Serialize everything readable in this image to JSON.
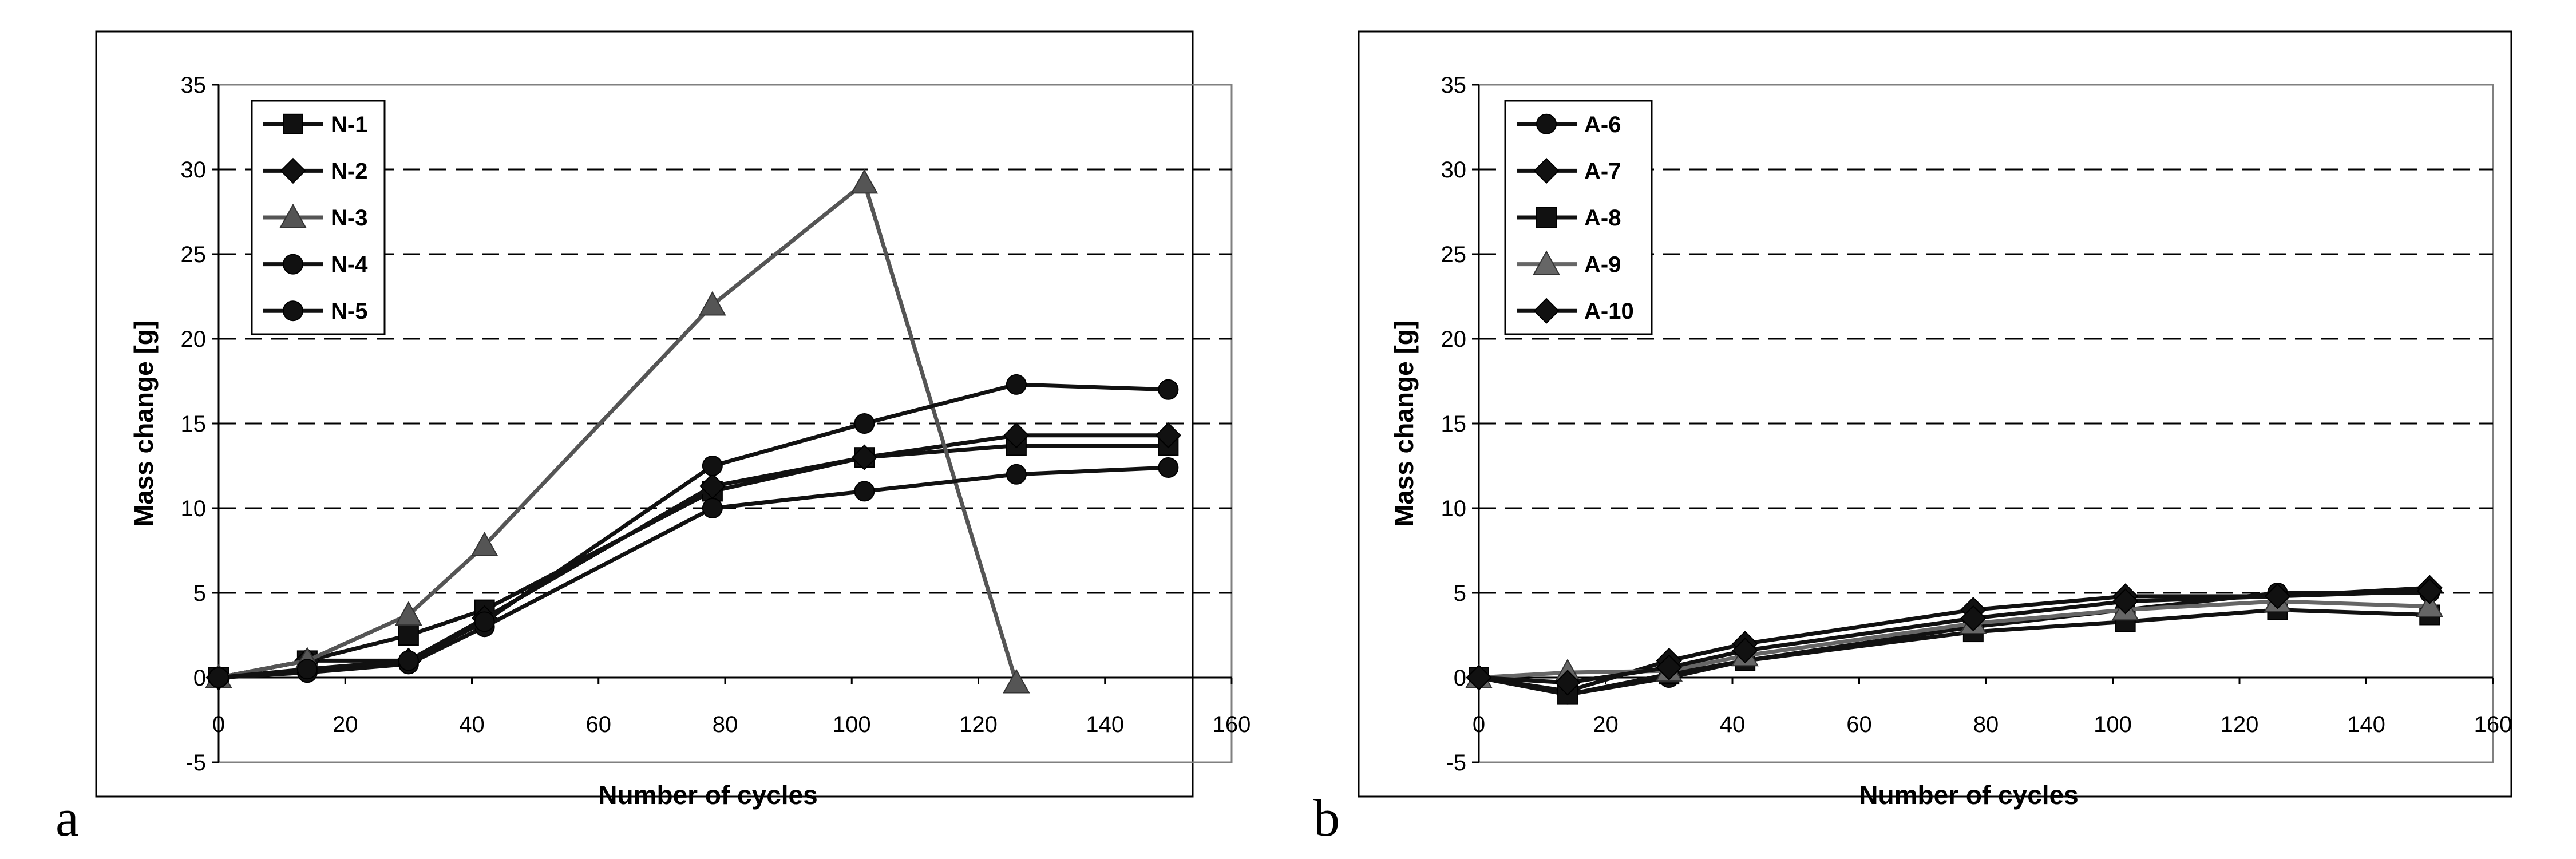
{
  "chart_data": [
    {
      "type": "line",
      "panel_label": "a",
      "title": "",
      "xlabel": "Number of cycles",
      "ylabel": "Mass change [g]",
      "xlim": [
        0,
        160
      ],
      "ylim": [
        -5,
        35
      ],
      "x_ticks": [
        "0",
        "20",
        "40",
        "60",
        "80",
        "100",
        "120",
        "140",
        "160"
      ],
      "y_ticks": [
        "-5",
        "0",
        "5",
        "10",
        "15",
        "20",
        "25",
        "30",
        "35"
      ],
      "grid": "horizontal dashed",
      "legend_position": "top-left",
      "x": [
        0,
        14,
        30,
        42,
        78,
        102,
        126,
        150
      ],
      "series": [
        {
          "name": "N-1",
          "marker": "square",
          "color": "#111111",
          "values": [
            0,
            1.0,
            2.5,
            4.0,
            11.0,
            13.0,
            13.7,
            13.7
          ]
        },
        {
          "name": "N-2",
          "marker": "diamond",
          "color": "#111111",
          "values": [
            0,
            1.0,
            1.0,
            3.5,
            11.3,
            13.0,
            14.3,
            14.3
          ]
        },
        {
          "name": "N-3",
          "marker": "triangle",
          "color": "#555555",
          "values": [
            0,
            1.0,
            3.7,
            7.8,
            22.0,
            29.2,
            -0.3,
            null
          ]
        },
        {
          "name": "N-4",
          "marker": "circle",
          "color": "#111111",
          "values": [
            0,
            0.3,
            0.8,
            3.0,
            10.0,
            11.0,
            12.0,
            12.4
          ]
        },
        {
          "name": "N-5",
          "marker": "circle",
          "color": "#111111",
          "values": [
            0,
            0.5,
            1.0,
            3.3,
            12.5,
            15.0,
            17.3,
            17.0
          ]
        }
      ]
    },
    {
      "type": "line",
      "panel_label": "b",
      "title": "",
      "xlabel": "Number of cycles",
      "ylabel": "Mass change [g]",
      "xlim": [
        0,
        160
      ],
      "ylim": [
        -5,
        35
      ],
      "x_ticks": [
        "0",
        "20",
        "40",
        "60",
        "80",
        "100",
        "120",
        "140",
        "160"
      ],
      "y_ticks": [
        "-5",
        "0",
        "5",
        "10",
        "15",
        "20",
        "25",
        "30",
        "35"
      ],
      "grid": "horizontal dashed",
      "legend_position": "top-left",
      "x": [
        0,
        14,
        30,
        42,
        78,
        102,
        126,
        150
      ],
      "series": [
        {
          "name": "A-6",
          "marker": "circle",
          "color": "#111111",
          "values": [
            0,
            -1.0,
            0.0,
            1.0,
            3.0,
            4.0,
            5.0,
            5.0
          ]
        },
        {
          "name": "A-7",
          "marker": "diamond",
          "color": "#111111",
          "values": [
            0,
            -0.8,
            1.0,
            2.0,
            4.0,
            4.8,
            4.8,
            5.3
          ]
        },
        {
          "name": "A-8",
          "marker": "square",
          "color": "#111111",
          "values": [
            0,
            -1.0,
            0.2,
            1.0,
            2.7,
            3.3,
            4.0,
            3.7
          ]
        },
        {
          "name": "A-9",
          "marker": "triangle",
          "color": "#666666",
          "values": [
            0,
            0.3,
            0.4,
            1.3,
            3.2,
            4.0,
            4.5,
            4.2
          ]
        },
        {
          "name": "A-10",
          "marker": "diamond",
          "color": "#111111",
          "values": [
            0,
            -0.3,
            0.6,
            1.6,
            3.5,
            4.5,
            4.8,
            5.1
          ]
        }
      ]
    }
  ]
}
